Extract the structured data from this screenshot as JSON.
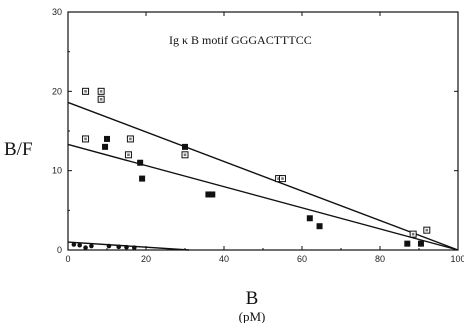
{
  "chart_data": {
    "type": "scatter",
    "title": "Ig κ B motif   GGGACTTTCC",
    "xlabel": "B",
    "xunit": "(pM)",
    "ylabel": "B/F",
    "xlim": [
      0,
      100
    ],
    "ylim": [
      0,
      30
    ],
    "xticks": [
      0,
      20,
      40,
      60,
      80,
      100
    ],
    "yticks": [
      0,
      10,
      20,
      30
    ],
    "grid": false,
    "colors": {
      "axis": "#111111",
      "line": "#111111",
      "filled_marker": "#111111",
      "open_marker_fill": "#ffffff",
      "open_marker_inner": "#777777"
    },
    "series": [
      {
        "marker": "open-square",
        "points": [
          [
            4.5,
            20.0
          ],
          [
            8.5,
            20.0
          ],
          [
            8.5,
            19.0
          ],
          [
            4.5,
            14.0
          ],
          [
            16.0,
            14.0
          ],
          [
            15.5,
            12.0
          ],
          [
            30.0,
            12.0
          ],
          [
            54.0,
            9.0
          ],
          [
            55.0,
            9.0
          ],
          [
            88.5,
            2.0
          ],
          [
            92.0,
            2.5
          ]
        ]
      },
      {
        "marker": "filled-square",
        "points": [
          [
            10.0,
            14.0
          ],
          [
            9.5,
            13.0
          ],
          [
            30.0,
            13.0
          ],
          [
            18.5,
            11.0
          ],
          [
            19.0,
            9.0
          ],
          [
            36.0,
            7.0
          ],
          [
            37.0,
            7.0
          ],
          [
            62.0,
            4.0
          ],
          [
            64.5,
            3.0
          ],
          [
            87.0,
            0.8
          ],
          [
            90.5,
            0.8
          ]
        ]
      },
      {
        "marker": "filled-circle",
        "points": [
          [
            1.5,
            0.7
          ],
          [
            3.0,
            0.6
          ],
          [
            4.5,
            0.3
          ],
          [
            6.0,
            0.5
          ],
          [
            10.5,
            0.5
          ],
          [
            13.0,
            0.4
          ],
          [
            15.0,
            0.35
          ],
          [
            17.0,
            0.3
          ]
        ]
      }
    ],
    "fit_lines": [
      {
        "x": [
          0,
          100
        ],
        "y": [
          18.6,
          0
        ]
      },
      {
        "x": [
          0,
          100
        ],
        "y": [
          13.3,
          0
        ]
      },
      {
        "x": [
          0,
          31
        ],
        "y": [
          1.0,
          0
        ]
      }
    ]
  }
}
